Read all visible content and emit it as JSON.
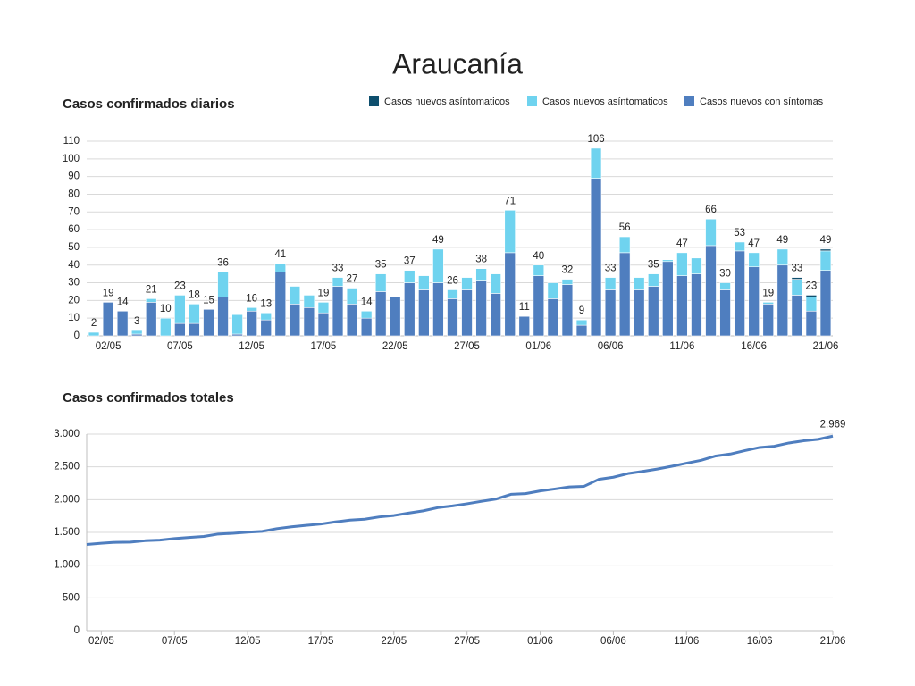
{
  "title": "Araucanía",
  "chart_data": [
    {
      "type": "bar",
      "stacked": true,
      "title": "Casos confirmados diarios",
      "categories": [
        null,
        "02/05",
        null,
        null,
        null,
        null,
        "07/05",
        null,
        null,
        null,
        null,
        "12/05",
        null,
        null,
        null,
        null,
        "17/05",
        null,
        null,
        null,
        null,
        "22/05",
        null,
        null,
        null,
        null,
        "27/05",
        null,
        null,
        null,
        null,
        "01/06",
        null,
        null,
        null,
        null,
        "06/06",
        null,
        null,
        null,
        null,
        "11/06",
        null,
        null,
        null,
        null,
        "16/06",
        null,
        null,
        null,
        null,
        "21/06"
      ],
      "series": [
        {
          "name": "Casos nuevos asíntomaticos",
          "color": "#0e4f6e",
          "values": [
            0,
            0,
            0,
            0,
            0,
            0,
            0,
            0,
            0,
            0,
            0,
            0,
            0,
            0,
            0,
            0,
            0,
            0,
            0,
            0,
            0,
            0,
            0,
            0,
            0,
            0,
            0,
            0,
            0,
            0,
            0,
            0,
            0,
            0,
            0,
            0,
            0,
            0,
            0,
            0,
            0,
            0,
            0,
            0,
            0,
            0,
            0,
            0,
            0,
            1,
            1,
            1
          ]
        },
        {
          "name": "Casos nuevos asíntomaticos",
          "color": "#6fd3ef",
          "values": [
            2,
            0,
            0,
            2,
            2,
            10,
            16,
            11,
            0,
            14,
            11,
            2,
            4,
            5,
            10,
            7,
            6,
            5,
            9,
            4,
            10,
            0,
            7,
            8,
            19,
            5,
            7,
            7,
            11,
            24,
            0,
            6,
            9,
            3,
            3,
            17,
            7,
            9,
            7,
            7,
            1,
            13,
            9,
            15,
            4,
            5,
            8,
            1,
            9,
            9,
            8,
            11
          ]
        },
        {
          "name": "Casos nuevos con síntomas",
          "color": "#4f7ebf",
          "values": [
            0,
            19,
            14,
            1,
            19,
            0,
            7,
            7,
            15,
            22,
            1,
            14,
            9,
            36,
            18,
            16,
            13,
            28,
            18,
            10,
            25,
            22,
            30,
            26,
            30,
            21,
            26,
            31,
            24,
            47,
            11,
            34,
            21,
            29,
            6,
            89,
            26,
            47,
            26,
            28,
            42,
            34,
            35,
            51,
            26,
            48,
            39,
            18,
            40,
            23,
            14,
            37
          ]
        }
      ],
      "totals": [
        2,
        19,
        14,
        3,
        21,
        10,
        23,
        18,
        15,
        36,
        null,
        16,
        13,
        41,
        null,
        null,
        19,
        33,
        27,
        14,
        35,
        null,
        37,
        null,
        49,
        26,
        null,
        38,
        null,
        71,
        11,
        40,
        null,
        32,
        9,
        106,
        33,
        56,
        null,
        35,
        null,
        47,
        null,
        66,
        30,
        53,
        47,
        19,
        49,
        33,
        23,
        49
      ],
      "ylim": [
        0,
        110
      ],
      "yticks": [
        0,
        10,
        20,
        30,
        40,
        50,
        60,
        70,
        80,
        90,
        100,
        110
      ],
      "grid": true,
      "legend": "top-right"
    },
    {
      "type": "line",
      "title": "Casos confirmados totales",
      "categories": [
        null,
        "02/05",
        null,
        null,
        null,
        null,
        "07/05",
        null,
        null,
        null,
        null,
        "12/05",
        null,
        null,
        null,
        null,
        "17/05",
        null,
        null,
        null,
        null,
        "22/05",
        null,
        null,
        null,
        null,
        "27/05",
        null,
        null,
        null,
        null,
        "01/06",
        null,
        null,
        null,
        null,
        "06/06",
        null,
        null,
        null,
        null,
        "11/06",
        null,
        null,
        null,
        null,
        "16/06",
        null,
        null,
        null,
        null,
        "21/06"
      ],
      "values": [
        1316,
        1335,
        1349,
        1352,
        1373,
        1383,
        1406,
        1424,
        1439,
        1475,
        1487,
        1503,
        1516,
        1557,
        1585,
        1608,
        1627,
        1660,
        1687,
        1701,
        1736,
        1758,
        1795,
        1829,
        1878,
        1904,
        1937,
        1975,
        2010,
        2081,
        2092,
        2132,
        2162,
        2194,
        2203,
        2309,
        2342,
        2398,
        2431,
        2466,
        2509,
        2556,
        2600,
        2666,
        2696,
        2749,
        2796,
        2815,
        2864,
        2897,
        2920,
        2969
      ],
      "value_labels": [
        null,
        null,
        null,
        null,
        null,
        null,
        null,
        null,
        null,
        null,
        null,
        null,
        null,
        null,
        null,
        null,
        null,
        null,
        null,
        null,
        null,
        null,
        null,
        null,
        null,
        null,
        null,
        null,
        null,
        null,
        null,
        null,
        null,
        null,
        null,
        null,
        null,
        null,
        null,
        null,
        null,
        null,
        null,
        null,
        null,
        null,
        null,
        null,
        null,
        null,
        null,
        "2.969"
      ],
      "color": "#4f7ebf",
      "ylim": [
        0,
        3000
      ],
      "yticks": [
        0,
        500,
        {
          "value": 1000,
          "label": "1.000"
        },
        {
          "value": 1500,
          "label": "1.500"
        },
        {
          "value": 2000,
          "label": "2.000"
        },
        {
          "value": 2500,
          "label": "2.500"
        },
        {
          "value": 3000,
          "label": "3.000"
        }
      ],
      "grid": true
    }
  ]
}
